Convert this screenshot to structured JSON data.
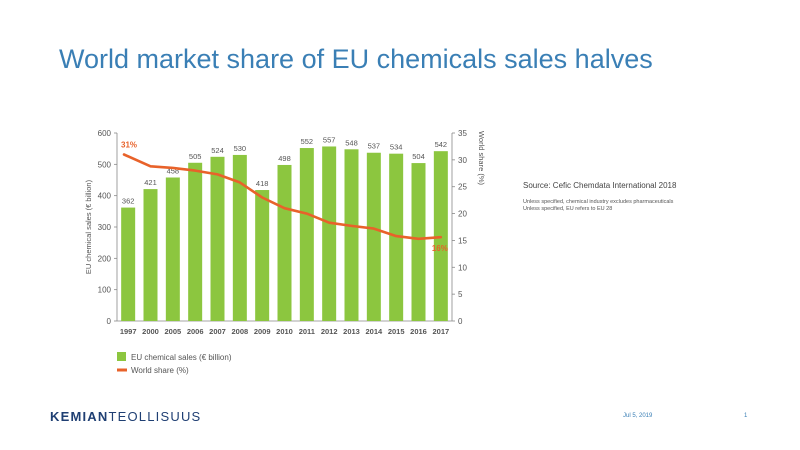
{
  "slide": {
    "title": "World market share of EU chemicals sales halves",
    "source": "Source: Cefic Chemdata International 2018",
    "note1": "Unless specified, chemical industry excludes pharmaceuticals",
    "note2": "Unless specified, EU refers to EU 28",
    "logo_part1": "KEMIAN",
    "logo_part2": "TEOLLISUUS",
    "date": "Jul 5, 2019",
    "page": "1"
  },
  "colors": {
    "title": "#3a7fb5",
    "bar": "#8cc63f",
    "line": "#e8622a",
    "axis_text": "#555555",
    "logo": "#1f3f73"
  },
  "chart_data": {
    "type": "bar",
    "categories": [
      "1997",
      "2000",
      "2005",
      "2006",
      "2007",
      "2008",
      "2009",
      "2010",
      "2011",
      "2012",
      "2013",
      "2014",
      "2015",
      "2016",
      "2017"
    ],
    "series": [
      {
        "name": "EU chemical sales (€ billion)",
        "type": "bar",
        "axis": "left",
        "values": [
          362,
          421,
          458,
          505,
          524,
          530,
          418,
          498,
          552,
          557,
          548,
          537,
          534,
          504,
          542
        ]
      },
      {
        "name": "World share (%)",
        "type": "line",
        "axis": "right",
        "values": [
          31,
          28.8,
          28.5,
          28,
          27.3,
          25.8,
          23,
          21,
          20,
          18.3,
          17.7,
          17.2,
          15.8,
          15.3,
          15.6
        ]
      }
    ],
    "ylabel": "EU chemical sales (€ billion)",
    "ylabel2": "World share (%)",
    "ylim": [
      0,
      600
    ],
    "y2lim": [
      0,
      35
    ],
    "yticks": [
      0,
      100,
      200,
      300,
      400,
      500,
      600
    ],
    "y2ticks": [
      0,
      5,
      10,
      15,
      20,
      25,
      30,
      35
    ],
    "annotations": [
      {
        "label": "31%",
        "series": 1,
        "index": 0
      },
      {
        "label": "16%",
        "series": 1,
        "index": 14
      }
    ],
    "legend": [
      "EU chemical sales (€ billion)",
      "World share (%)"
    ],
    "legend_position": "bottom-left",
    "grid": false
  }
}
